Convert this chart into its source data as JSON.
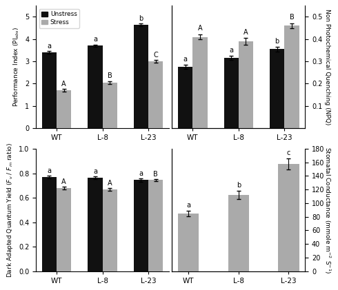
{
  "categories": [
    "WT",
    "L-8",
    "L-23"
  ],
  "pi_unstress": [
    3.4,
    3.7,
    4.65
  ],
  "pi_stress": [
    1.7,
    2.05,
    3.0
  ],
  "pi_unstress_err": [
    0.07,
    0.06,
    0.06
  ],
  "pi_stress_err": [
    0.07,
    0.07,
    0.05
  ],
  "pi_ylim": [
    0,
    5.5
  ],
  "pi_yticks": [
    0,
    1,
    2,
    3,
    4,
    5
  ],
  "pi_ylabel": "Performance Index (PI$_{abs}$)",
  "pi_unstress_labels": [
    "a",
    "a",
    "b"
  ],
  "pi_stress_labels": [
    "A",
    "B",
    "C"
  ],
  "npq_unstress": [
    0.275,
    0.315,
    0.355
  ],
  "npq_stress": [
    0.41,
    0.39,
    0.46
  ],
  "npq_unstress_err": [
    0.01,
    0.01,
    0.01
  ],
  "npq_stress_err": [
    0.012,
    0.015,
    0.012
  ],
  "npq_ylim": [
    0,
    0.55
  ],
  "npq_yticks": [
    0.1,
    0.2,
    0.3,
    0.4,
    0.5
  ],
  "npq_ylabel": "Non Photochemical Quenching (NPQ)",
  "npq_unstress_labels": [
    "a",
    "a",
    "b"
  ],
  "npq_stress_labels": [
    "A",
    "A",
    "B"
  ],
  "fv_unstress": [
    0.77,
    0.762,
    0.745
  ],
  "fv_stress": [
    0.68,
    0.668,
    0.745
  ],
  "fv_unstress_err": [
    0.012,
    0.012,
    0.015
  ],
  "fv_stress_err": [
    0.01,
    0.01,
    0.01
  ],
  "fv_ylim": [
    0,
    1.0
  ],
  "fv_yticks": [
    0.0,
    0.2,
    0.4,
    0.6,
    0.8,
    1.0
  ],
  "fv_ylabel": "Dark Adapted Quantum Yield ($F_v$ / $F_m$ ratio)",
  "fv_unstress_labels": [
    "a",
    "a",
    "a"
  ],
  "fv_stress_labels": [
    "A",
    "A",
    "B"
  ],
  "sc_stress": [
    85,
    112,
    158
  ],
  "sc_stress_err": [
    4.0,
    6.0,
    8.0
  ],
  "sc_ylim": [
    0,
    180
  ],
  "sc_yticks": [
    0,
    20,
    40,
    60,
    80,
    100,
    120,
    140,
    160,
    180
  ],
  "sc_ylabel": "Stomatal Conductance (mmole m$^{-2}$ S$^{-1}$)",
  "sc_stress_labels": [
    "a",
    "b",
    "c"
  ],
  "color_black": "#111111",
  "color_gray": "#aaaaaa",
  "bar_width": 0.32,
  "legend_labels": [
    "Unstress",
    "Stress"
  ],
  "figsize": [
    4.9,
    4.21
  ],
  "dpi": 100
}
